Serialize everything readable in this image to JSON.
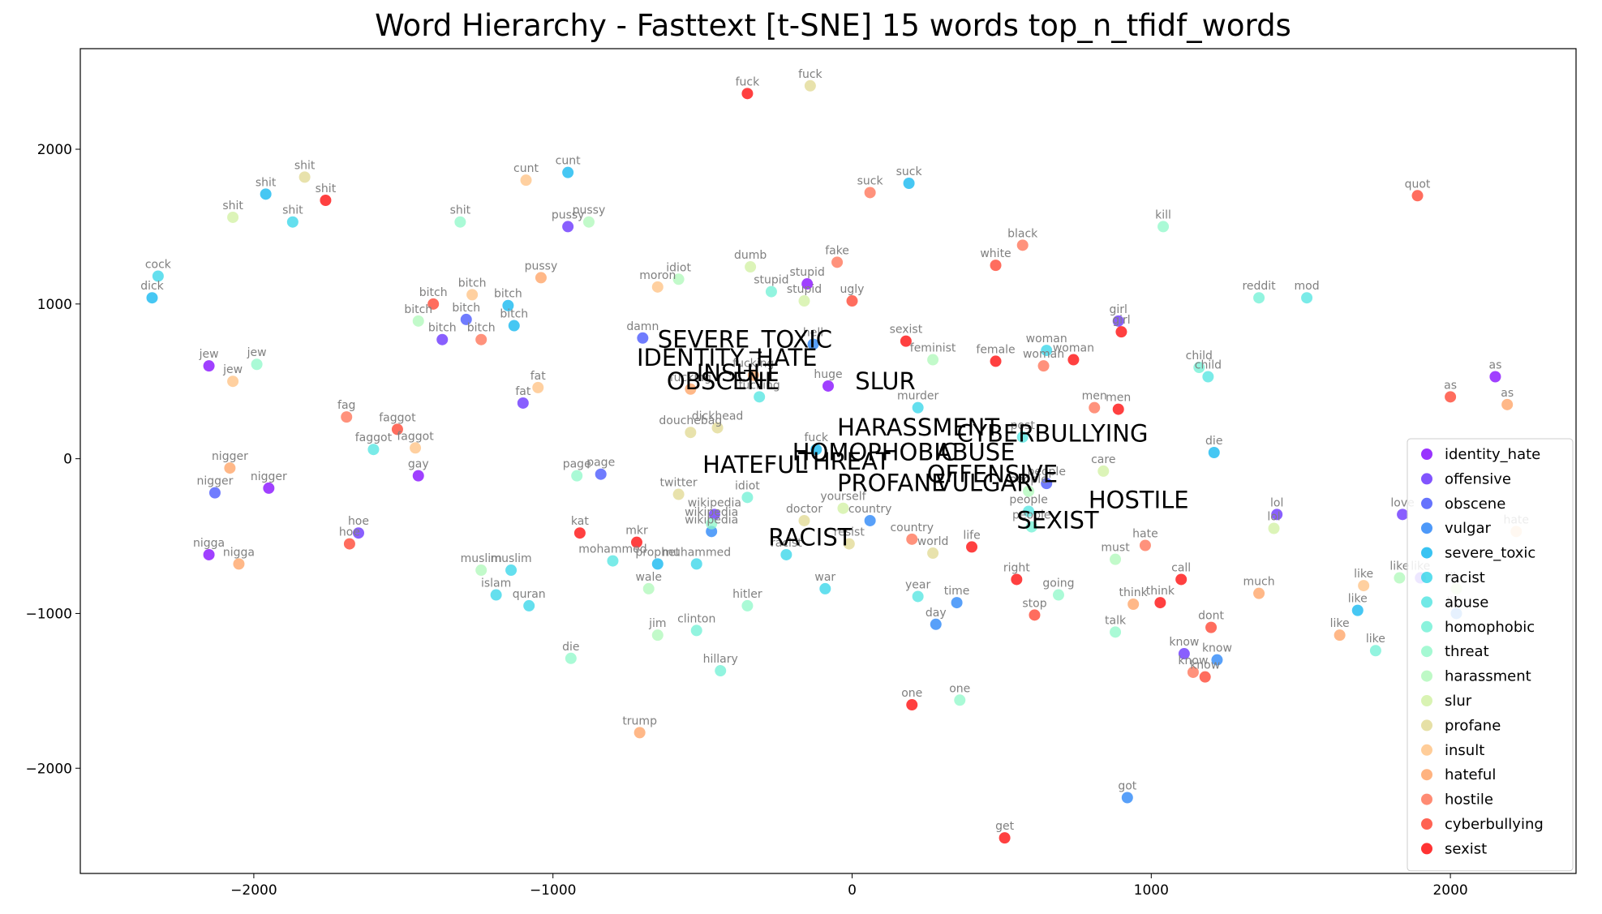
{
  "chart_data": {
    "type": "scatter",
    "title": "Word Hierarchy - Fasttext [t-SNE] 15 words top_n_tfidf_words",
    "xlabel": "",
    "ylabel": "",
    "xlim": [
      -2580,
      2420
    ],
    "ylim": [
      -2680,
      2650
    ],
    "xticks": [
      -2000,
      -1000,
      0,
      1000,
      2000
    ],
    "yticks": [
      2000,
      1000,
      0,
      -1000,
      -2000
    ],
    "legend_position": "right",
    "series": [
      {
        "name": "identity_hate",
        "color": "#8000ff",
        "points": [
          {
            "x": -2150,
            "y": 600,
            "label": "jew"
          },
          {
            "x": -1950,
            "y": -190,
            "label": "nigger"
          },
          {
            "x": -1450,
            "y": -110,
            "label": "gay"
          },
          {
            "x": -150,
            "y": 1130,
            "label": "stupid"
          },
          {
            "x": -80,
            "y": 470,
            "label": "huge"
          },
          {
            "x": 2150,
            "y": 530,
            "label": "as"
          },
          {
            "x": -2150,
            "y": -620,
            "label": "nigga"
          }
        ]
      },
      {
        "name": "offensive",
        "color": "#6129fe",
        "points": [
          {
            "x": -950,
            "y": 1500,
            "label": "pussy"
          },
          {
            "x": -1370,
            "y": 770,
            "label": "bitch"
          },
          {
            "x": -1650,
            "y": -480,
            "label": "hoe"
          },
          {
            "x": -1100,
            "y": 360,
            "label": "fat"
          },
          {
            "x": 1110,
            "y": -1260,
            "label": "know"
          },
          {
            "x": 1420,
            "y": -360,
            "label": "lol"
          },
          {
            "x": 1840,
            "y": -360,
            "label": "love"
          },
          {
            "x": 1900,
            "y": -770,
            "label": "like"
          },
          {
            "x": 890,
            "y": 890,
            "label": "girl"
          },
          {
            "x": -460,
            "y": -360,
            "label": "wikipedia"
          }
        ]
      },
      {
        "name": "obscene",
        "color": "#4050fd",
        "points": [
          {
            "x": -2130,
            "y": -220,
            "label": "nigger"
          },
          {
            "x": -1290,
            "y": 900,
            "label": "bitch"
          },
          {
            "x": -840,
            "y": -100,
            "label": "page"
          },
          {
            "x": -700,
            "y": 780,
            "label": "damn"
          },
          {
            "x": 650,
            "y": -160,
            "label": "people"
          }
        ]
      },
      {
        "name": "vulgar",
        "color": "#2080f7",
        "points": [
          {
            "x": -130,
            "y": 740,
            "label": "hell"
          },
          {
            "x": 1220,
            "y": -1300,
            "label": "know"
          },
          {
            "x": 920,
            "y": -2190,
            "label": "got"
          },
          {
            "x": 350,
            "y": -930,
            "label": "time"
          },
          {
            "x": 280,
            "y": -1070,
            "label": "day"
          },
          {
            "x": 60,
            "y": -400,
            "label": "country"
          },
          {
            "x": -470,
            "y": -470,
            "label": "wikipedia"
          },
          {
            "x": 2020,
            "y": -1000,
            "label": "like"
          }
        ]
      },
      {
        "name": "severe_toxic",
        "color": "#08b4ef",
        "points": [
          {
            "x": -2340,
            "y": 1040,
            "label": "dick"
          },
          {
            "x": -1960,
            "y": 1710,
            "label": "shit"
          },
          {
            "x": -1130,
            "y": 860,
            "label": "bitch"
          },
          {
            "x": -1150,
            "y": 990,
            "label": "bitch"
          },
          {
            "x": -950,
            "y": 1850,
            "label": "cunt"
          },
          {
            "x": 190,
            "y": 1780,
            "label": "suck"
          },
          {
            "x": 1210,
            "y": 40,
            "label": "die"
          },
          {
            "x": 1690,
            "y": -980,
            "label": "like"
          },
          {
            "x": -650,
            "y": -680,
            "label": "prophet"
          },
          {
            "x": -120,
            "y": 60,
            "label": "fuck"
          }
        ]
      },
      {
        "name": "racist",
        "color": "#30d4e8",
        "points": [
          {
            "x": -2320,
            "y": 1180,
            "label": "cock"
          },
          {
            "x": -1870,
            "y": 1530,
            "label": "shit"
          },
          {
            "x": -1190,
            "y": -880,
            "label": "islam"
          },
          {
            "x": -1080,
            "y": -950,
            "label": "quran"
          },
          {
            "x": -1140,
            "y": -720,
            "label": "muslim"
          },
          {
            "x": -520,
            "y": -680,
            "label": "muhammed"
          },
          {
            "x": -220,
            "y": -620,
            "label": "racist"
          },
          {
            "x": 220,
            "y": 330,
            "label": "murder"
          },
          {
            "x": -90,
            "y": -840,
            "label": "war"
          },
          {
            "x": 650,
            "y": 700,
            "label": "woman"
          }
        ]
      },
      {
        "name": "abuse",
        "color": "#4ee4e0",
        "points": [
          {
            "x": -1600,
            "y": 60,
            "label": "faggot"
          },
          {
            "x": -310,
            "y": 400,
            "label": "fucking"
          },
          {
            "x": 1190,
            "y": 530,
            "label": "child"
          },
          {
            "x": 1520,
            "y": 1040,
            "label": "mod"
          },
          {
            "x": -800,
            "y": -660,
            "label": "mohammed"
          },
          {
            "x": 590,
            "y": -340,
            "label": "people"
          },
          {
            "x": 220,
            "y": -890,
            "label": "year"
          },
          {
            "x": 570,
            "y": 140,
            "label": "post"
          }
        ]
      },
      {
        "name": "homophobic",
        "color": "#6ef0d4",
        "points": [
          {
            "x": 1360,
            "y": 1040,
            "label": "reddit"
          },
          {
            "x": -520,
            "y": -1110,
            "label": "clinton"
          },
          {
            "x": -440,
            "y": -1370,
            "label": "hillary"
          },
          {
            "x": -270,
            "y": 1080,
            "label": "stupid"
          },
          {
            "x": 1160,
            "y": 590,
            "label": "child"
          },
          {
            "x": 1750,
            "y": -1240,
            "label": "like"
          },
          {
            "x": 600,
            "y": -440,
            "label": "people"
          },
          {
            "x": -350,
            "y": -250,
            "label": "idiot"
          }
        ]
      },
      {
        "name": "threat",
        "color": "#8ef8c8",
        "points": [
          {
            "x": -1310,
            "y": 1530,
            "label": "shit"
          },
          {
            "x": 1040,
            "y": 1500,
            "label": "kill"
          },
          {
            "x": -920,
            "y": -110,
            "label": "page"
          },
          {
            "x": -940,
            "y": -1290,
            "label": "die"
          },
          {
            "x": 880,
            "y": -1120,
            "label": "talk"
          },
          {
            "x": -350,
            "y": -950,
            "label": "hitler"
          },
          {
            "x": 690,
            "y": -880,
            "label": "going"
          },
          {
            "x": 360,
            "y": -1560,
            "label": "one"
          },
          {
            "x": -470,
            "y": -420,
            "label": "wikipedia"
          },
          {
            "x": -1990,
            "y": 610,
            "label": "jew"
          }
        ]
      },
      {
        "name": "harassment",
        "color": "#aef8b8",
        "points": [
          {
            "x": -1450,
            "y": 890,
            "label": "bitch"
          },
          {
            "x": -880,
            "y": 1530,
            "label": "pussy"
          },
          {
            "x": -580,
            "y": 1160,
            "label": "idiot"
          },
          {
            "x": -680,
            "y": -840,
            "label": "wale"
          },
          {
            "x": -650,
            "y": -1140,
            "label": "jim"
          },
          {
            "x": 270,
            "y": 640,
            "label": "feminist"
          },
          {
            "x": 880,
            "y": -650,
            "label": "must"
          },
          {
            "x": -1240,
            "y": -720,
            "label": "muslim"
          },
          {
            "x": 590,
            "y": -210,
            "label": "people"
          },
          {
            "x": 1830,
            "y": -770,
            "label": "like"
          }
        ]
      },
      {
        "name": "slur",
        "color": "#d0f0a0",
        "points": [
          {
            "x": -2070,
            "y": 1560,
            "label": "shit"
          },
          {
            "x": -340,
            "y": 1240,
            "label": "dumb"
          },
          {
            "x": -160,
            "y": 1020,
            "label": "stupid"
          },
          {
            "x": 840,
            "y": -80,
            "label": "care"
          },
          {
            "x": 1410,
            "y": -450,
            "label": "lol"
          },
          {
            "x": -30,
            "y": -320,
            "label": "yourself"
          },
          {
            "x": 2020,
            "y": -840,
            "label": "like"
          }
        ]
      },
      {
        "name": "profane",
        "color": "#e0d890",
        "points": [
          {
            "x": -1830,
            "y": 1820,
            "label": "shit"
          },
          {
            "x": -140,
            "y": 2410,
            "label": "fuck"
          },
          {
            "x": -580,
            "y": -230,
            "label": "twitter"
          },
          {
            "x": -540,
            "y": 170,
            "label": "douchebag"
          },
          {
            "x": -450,
            "y": 200,
            "label": "dickhead"
          },
          {
            "x": 270,
            "y": -610,
            "label": "world"
          },
          {
            "x": -10,
            "y": -550,
            "label": "resist"
          },
          {
            "x": -160,
            "y": -400,
            "label": "doctor"
          }
        ]
      },
      {
        "name": "insult",
        "color": "#ffc080",
        "points": [
          {
            "x": -2070,
            "y": 500,
            "label": "jew"
          },
          {
            "x": -1090,
            "y": 1800,
            "label": "cunt"
          },
          {
            "x": -1270,
            "y": 1060,
            "label": "bitch"
          },
          {
            "x": -650,
            "y": 1110,
            "label": "moron"
          },
          {
            "x": -1050,
            "y": 460,
            "label": "fat"
          },
          {
            "x": -1460,
            "y": 70,
            "label": "faggot"
          },
          {
            "x": 1710,
            "y": -820,
            "label": "like"
          },
          {
            "x": 2220,
            "y": -470,
            "label": "hate"
          }
        ]
      },
      {
        "name": "hateful",
        "color": "#ffa060",
        "points": [
          {
            "x": -2080,
            "y": -60,
            "label": "nigger"
          },
          {
            "x": -2050,
            "y": -680,
            "label": "nigga"
          },
          {
            "x": -1040,
            "y": 1170,
            "label": "pussy"
          },
          {
            "x": -710,
            "y": -1770,
            "label": "trump"
          },
          {
            "x": 2190,
            "y": 350,
            "label": "as"
          },
          {
            "x": 1360,
            "y": -870,
            "label": "much"
          },
          {
            "x": 1630,
            "y": -1140,
            "label": "like"
          },
          {
            "x": 940,
            "y": -940,
            "label": "think"
          },
          {
            "x": -330,
            "y": 540,
            "label": "fucking"
          },
          {
            "x": -540,
            "y": 450,
            "label": "fucking"
          }
        ]
      },
      {
        "name": "hostile",
        "color": "#ff6e50",
        "points": [
          {
            "x": -1690,
            "y": 270,
            "label": "fag"
          },
          {
            "x": -1240,
            "y": 770,
            "label": "bitch"
          },
          {
            "x": 570,
            "y": 1380,
            "label": "black"
          },
          {
            "x": -50,
            "y": 1270,
            "label": "fake"
          },
          {
            "x": 640,
            "y": 600,
            "label": "woman"
          },
          {
            "x": 810,
            "y": 330,
            "label": "men"
          },
          {
            "x": 980,
            "y": -560,
            "label": "hate"
          },
          {
            "x": 1140,
            "y": -1380,
            "label": "know"
          },
          {
            "x": 200,
            "y": -520,
            "label": "country"
          },
          {
            "x": 60,
            "y": 1720,
            "label": "suck"
          }
        ]
      },
      {
        "name": "cyberbullying",
        "color": "#ff3c28",
        "points": [
          {
            "x": -1400,
            "y": 1000,
            "label": "bitch"
          },
          {
            "x": -1680,
            "y": -550,
            "label": "hoe"
          },
          {
            "x": 0,
            "y": 1020,
            "label": "ugly"
          },
          {
            "x": 480,
            "y": 1250,
            "label": "white"
          },
          {
            "x": 1890,
            "y": 1700,
            "label": "quot"
          },
          {
            "x": 1180,
            "y": -1410,
            "label": "know"
          },
          {
            "x": 1200,
            "y": -1090,
            "label": "dont"
          },
          {
            "x": 610,
            "y": -1010,
            "label": "stop"
          },
          {
            "x": -1520,
            "y": 190,
            "label": "faggot"
          },
          {
            "x": 2000,
            "y": 400,
            "label": "as"
          }
        ]
      },
      {
        "name": "sexist",
        "color": "#ff0000",
        "points": [
          {
            "x": -1760,
            "y": 1670,
            "label": "shit"
          },
          {
            "x": -350,
            "y": 2360,
            "label": "fuck"
          },
          {
            "x": -910,
            "y": -480,
            "label": "kat"
          },
          {
            "x": -720,
            "y": -540,
            "label": "mkr"
          },
          {
            "x": 180,
            "y": 760,
            "label": "sexist"
          },
          {
            "x": 900,
            "y": 820,
            "label": "girl"
          },
          {
            "x": 510,
            "y": -2450,
            "label": "get"
          },
          {
            "x": 200,
            "y": -1590,
            "label": "one"
          },
          {
            "x": 1030,
            "y": -930,
            "label": "think"
          },
          {
            "x": 1100,
            "y": -780,
            "label": "call"
          },
          {
            "x": 740,
            "y": 640,
            "label": "woman"
          },
          {
            "x": 890,
            "y": 320,
            "label": "men"
          },
          {
            "x": 400,
            "y": -570,
            "label": "life"
          },
          {
            "x": 550,
            "y": -780,
            "label": "right"
          },
          {
            "x": 480,
            "y": 630,
            "label": "female"
          }
        ]
      }
    ],
    "category_labels": [
      {
        "text": "SEVERE_TOXIC",
        "x": -650,
        "y": 720
      },
      {
        "text": "IDENTITY_HATE",
        "x": -720,
        "y": 600
      },
      {
        "text": "INSULT",
        "x": -520,
        "y": 500
      },
      {
        "text": "OBSCENE",
        "x": -620,
        "y": 450
      },
      {
        "text": "SLUR",
        "x": 10,
        "y": 450
      },
      {
        "text": "HARASSMENT",
        "x": -50,
        "y": 150
      },
      {
        "text": "CYBERBULLYING",
        "x": 350,
        "y": 110
      },
      {
        "text": "HOMOPHOBIC",
        "x": -200,
        "y": -10
      },
      {
        "text": "ABUSE",
        "x": 280,
        "y": -10
      },
      {
        "text": "HATEFUL",
        "x": -500,
        "y": -90
      },
      {
        "text": "THREAT",
        "x": -180,
        "y": -70
      },
      {
        "text": "OFFENSIVE",
        "x": 250,
        "y": -150
      },
      {
        "text": "PROFANE",
        "x": -50,
        "y": -210
      },
      {
        "text": "VULGAR",
        "x": 280,
        "y": -210
      },
      {
        "text": "HOSTILE",
        "x": 790,
        "y": -320
      },
      {
        "text": "SEXIST",
        "x": 550,
        "y": -450
      },
      {
        "text": "RACIST",
        "x": -280,
        "y": -560
      }
    ]
  }
}
